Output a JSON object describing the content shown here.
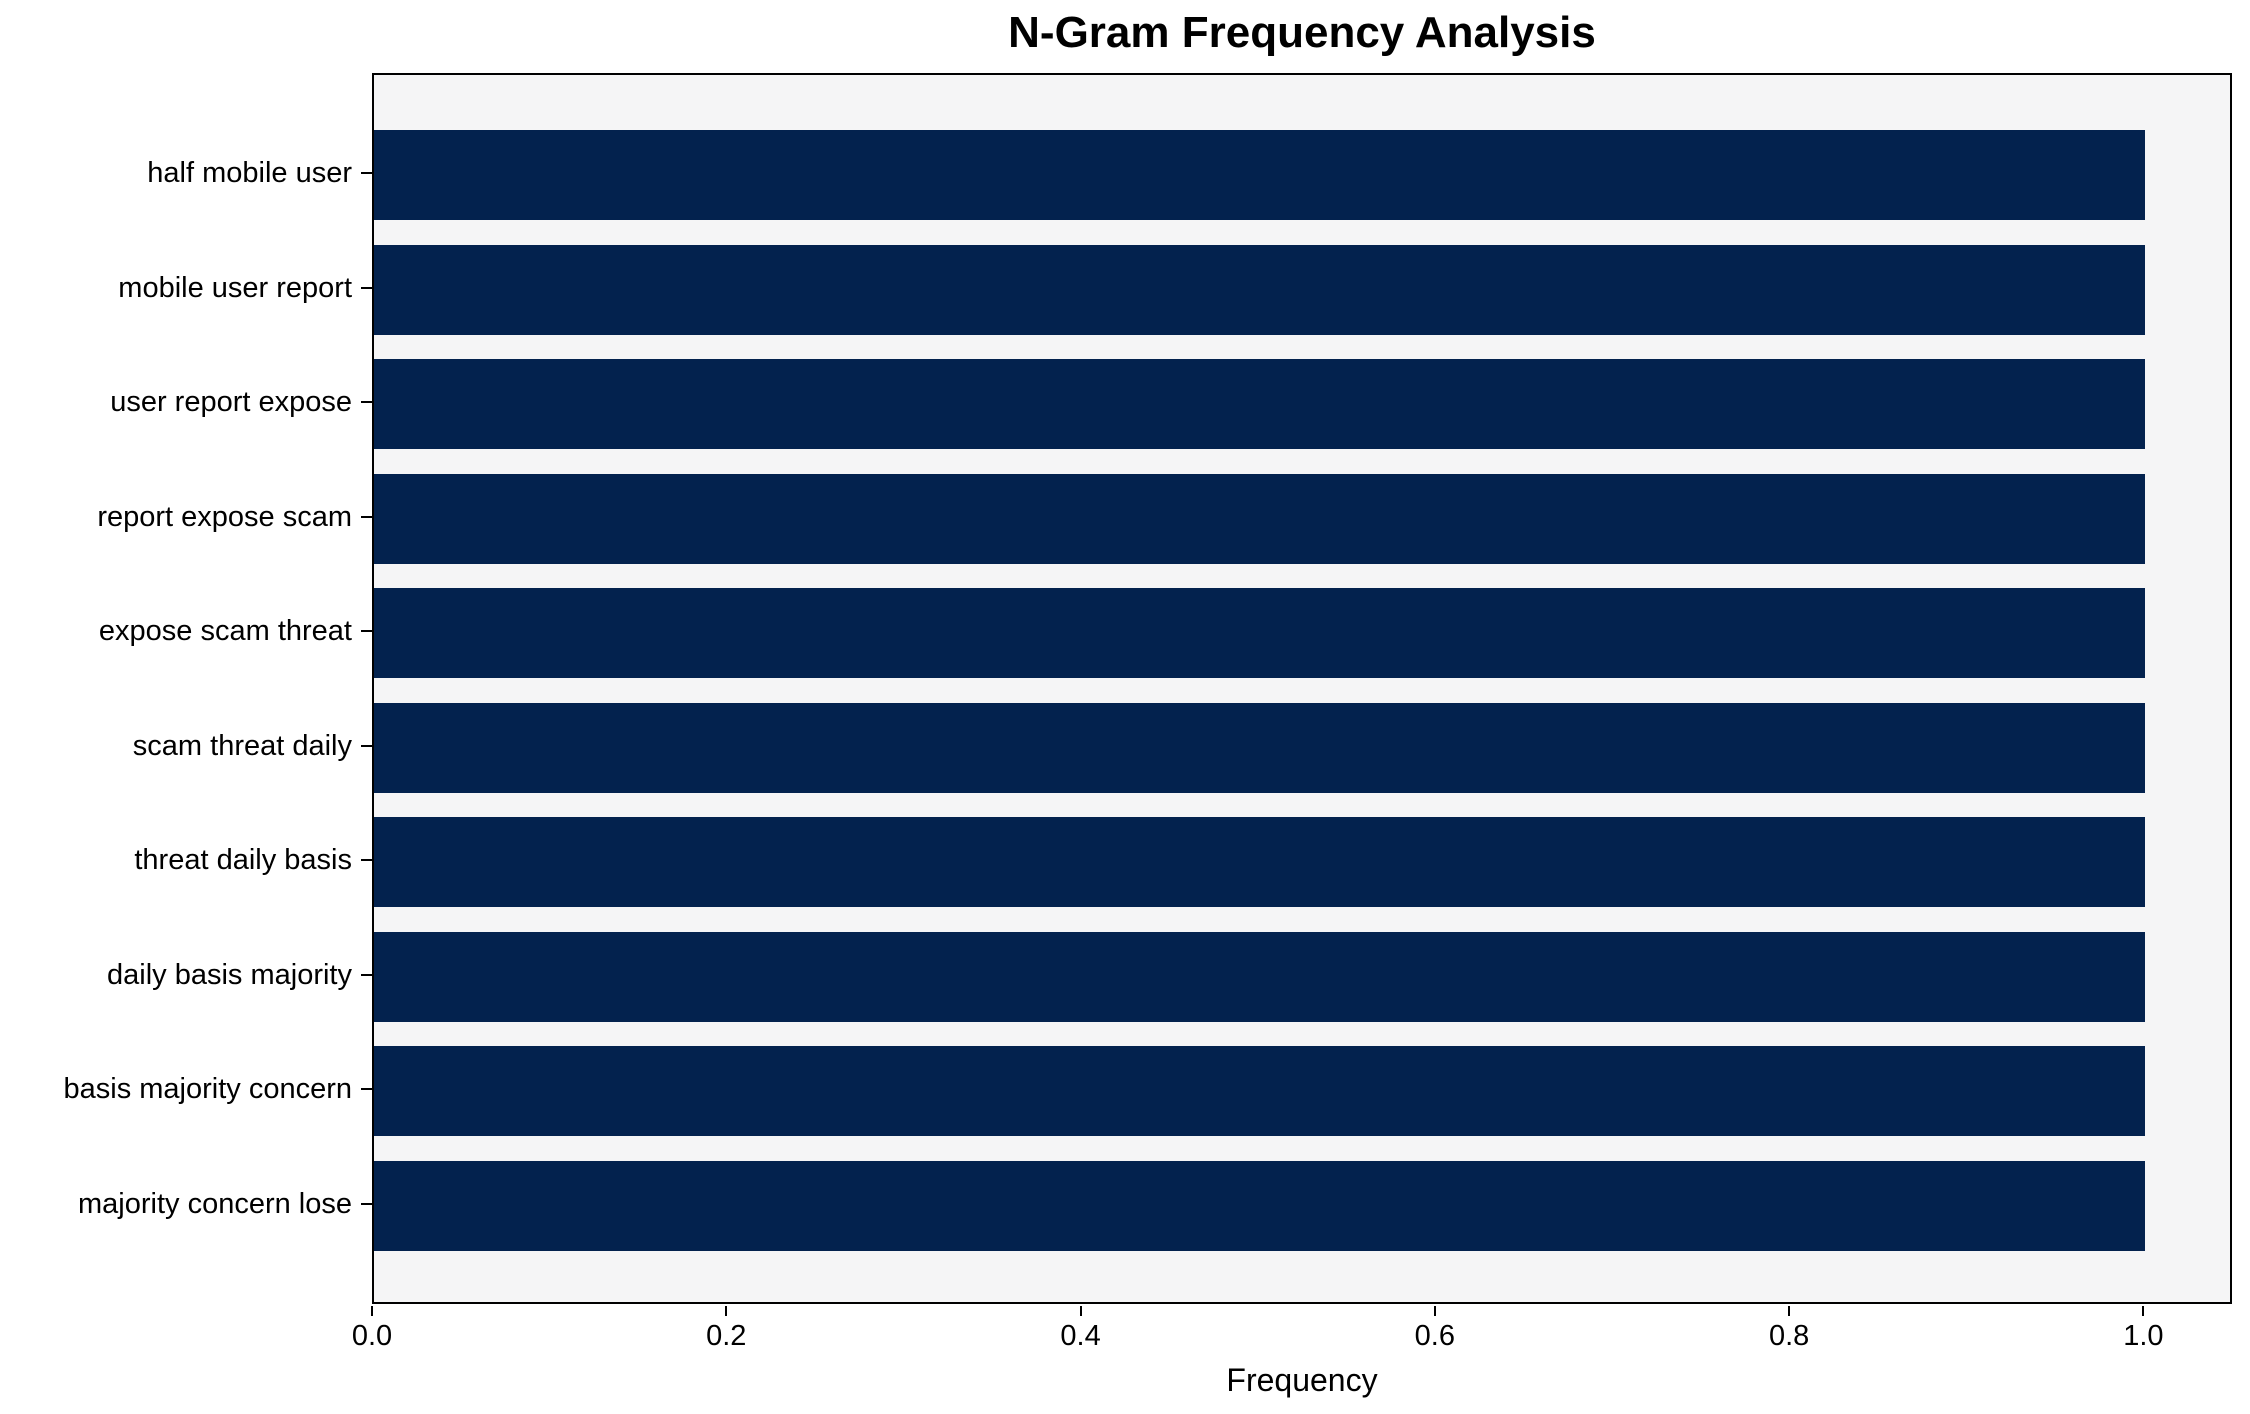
{
  "chart_data": {
    "type": "bar",
    "orientation": "horizontal",
    "title": "N-Gram Frequency Analysis",
    "xlabel": "Frequency",
    "ylabel": "",
    "categories": [
      "half mobile user",
      "mobile user report",
      "user report expose",
      "report expose scam",
      "expose scam threat",
      "scam threat daily",
      "threat daily basis",
      "daily basis majority",
      "basis majority concern",
      "majority concern lose"
    ],
    "values": [
      1.0,
      1.0,
      1.0,
      1.0,
      1.0,
      1.0,
      1.0,
      1.0,
      1.0,
      1.0
    ],
    "xticks": [
      0.0,
      0.2,
      0.4,
      0.6,
      0.8,
      1.0
    ],
    "xtick_decimals": 1,
    "xlim": [
      0,
      1.05
    ],
    "grid": false,
    "legend_position": "none",
    "colors": {
      "bar": "#03224e",
      "plot_background": "#f5f5f6",
      "figure_background": "#ffffff",
      "axis": "#000000",
      "text": "#000000"
    }
  }
}
